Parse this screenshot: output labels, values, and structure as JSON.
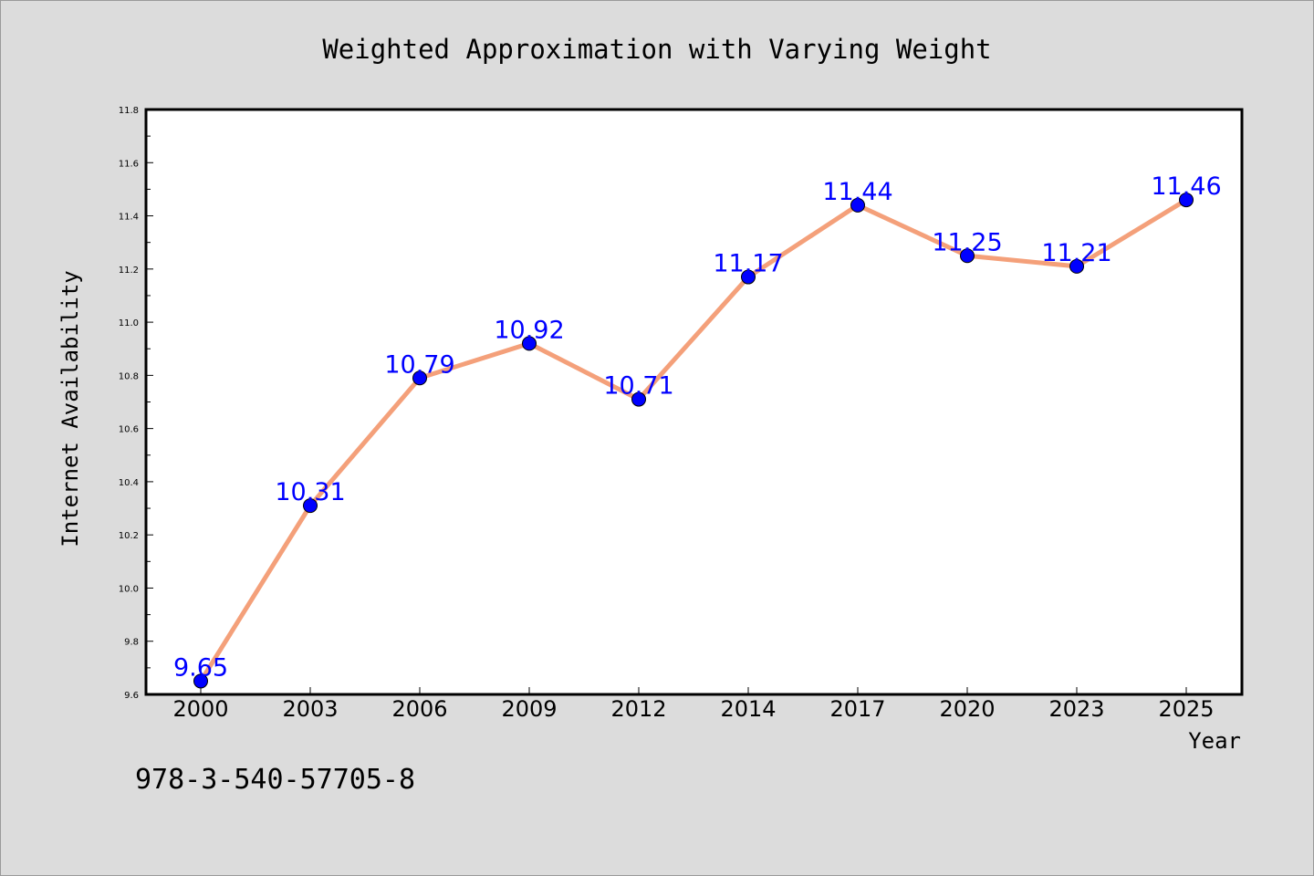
{
  "chart_data": {
    "type": "line",
    "title": "Weighted Approximation with Varying Weight",
    "xlabel": "Year",
    "ylabel": "Internet Availability",
    "categories": [
      "2000",
      "2003",
      "2006",
      "2009",
      "2012",
      "2014",
      "2017",
      "2020",
      "2023",
      "2025"
    ],
    "series": [
      {
        "values": [
          9.65,
          10.31,
          10.79,
          10.92,
          10.71,
          11.17,
          11.44,
          11.25,
          11.21,
          11.46
        ],
        "line_color": "#f4a07a",
        "marker_color": "#0000ff"
      }
    ],
    "data_labels": [
      "9.65",
      "10.31",
      "10.79",
      "10.92",
      "10.71",
      "11.17",
      "11.44",
      "11.25",
      "11.21",
      "11.46"
    ],
    "ylim": [
      9.6,
      11.8
    ],
    "yticks": [
      "9.6",
      "9.8",
      "10.0",
      "10.2",
      "10.4",
      "10.6",
      "10.8",
      "11.0",
      "11.2",
      "11.4",
      "11.6",
      "11.8"
    ],
    "grid": false,
    "legend": "none"
  },
  "annotation": "978-3-540-57705-8",
  "colors": {
    "background": "#dcdcdc",
    "plot_area": "#ffffff"
  }
}
